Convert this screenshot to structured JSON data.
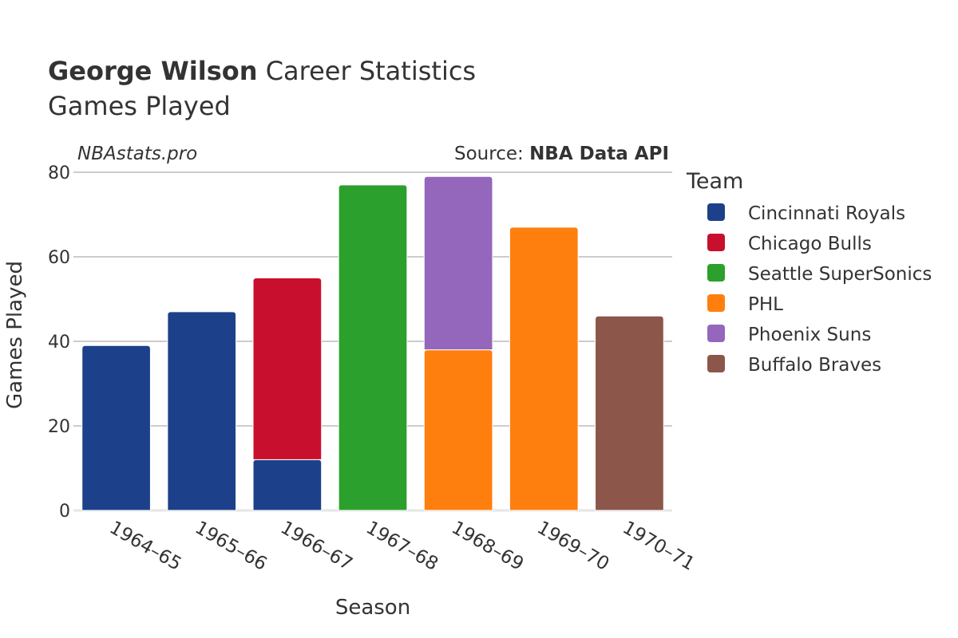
{
  "title": {
    "player": "George Wilson",
    "rest": " Career Statistics",
    "subtitle": "Games Played"
  },
  "watermark": "NBAstats.pro",
  "source": {
    "prefix": "Source: ",
    "name": "NBA Data API"
  },
  "chart_data": {
    "type": "bar",
    "stacked": true,
    "categories": [
      "1964–65",
      "1965–66",
      "1966–67",
      "1967–68",
      "1968–69",
      "1969–70",
      "1970–71"
    ],
    "xlabel": "Season",
    "ylabel": "Games Played",
    "ylim": [
      0,
      80
    ],
    "yticks": [
      0,
      20,
      40,
      60,
      80
    ],
    "grid": true,
    "legend": {
      "title": "Team",
      "placement": "right"
    },
    "series": [
      {
        "name": "Cincinnati Royals",
        "color": "#1c418a",
        "values": [
          39,
          47,
          12,
          0,
          0,
          0,
          0
        ]
      },
      {
        "name": "Chicago Bulls",
        "color": "#c8102e",
        "values": [
          0,
          0,
          43,
          0,
          0,
          0,
          0
        ]
      },
      {
        "name": "Seattle SuperSonics",
        "color": "#2ca02c",
        "values": [
          0,
          0,
          0,
          77,
          0,
          0,
          0
        ]
      },
      {
        "name": "PHL",
        "color": "#ff7f0e",
        "values": [
          0,
          0,
          0,
          0,
          38,
          67,
          0
        ]
      },
      {
        "name": "Phoenix Suns",
        "color": "#9467bd",
        "values": [
          0,
          0,
          0,
          0,
          41,
          0,
          0
        ]
      },
      {
        "name": "Buffalo Braves",
        "color": "#8c564b",
        "values": [
          0,
          0,
          0,
          0,
          0,
          0,
          46
        ]
      }
    ]
  }
}
